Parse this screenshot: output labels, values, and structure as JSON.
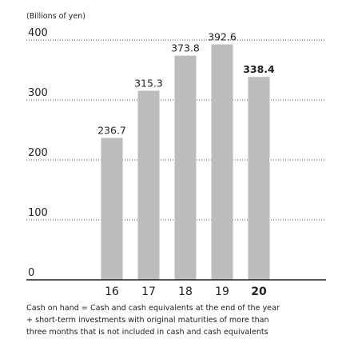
{
  "chart_data": {
    "type": "bar",
    "y_axis_label": "(Billions of yen)",
    "categories": [
      "16",
      "17",
      "18",
      "19",
      "20"
    ],
    "values": [
      236.7,
      315.3,
      373.8,
      392.6,
      338.4
    ],
    "color": "#bcbcbc",
    "ylim": [
      0,
      400
    ],
    "yticks": [
      0,
      100,
      200,
      300,
      400
    ],
    "grid": true,
    "bold_last": true,
    "caption": [
      "Cash on hand = Cash and cash equivalents at the end of the year",
      "+ short-term investments with original maturities of more than",
      "three months that is not included in cash and cash equivalents"
    ]
  }
}
